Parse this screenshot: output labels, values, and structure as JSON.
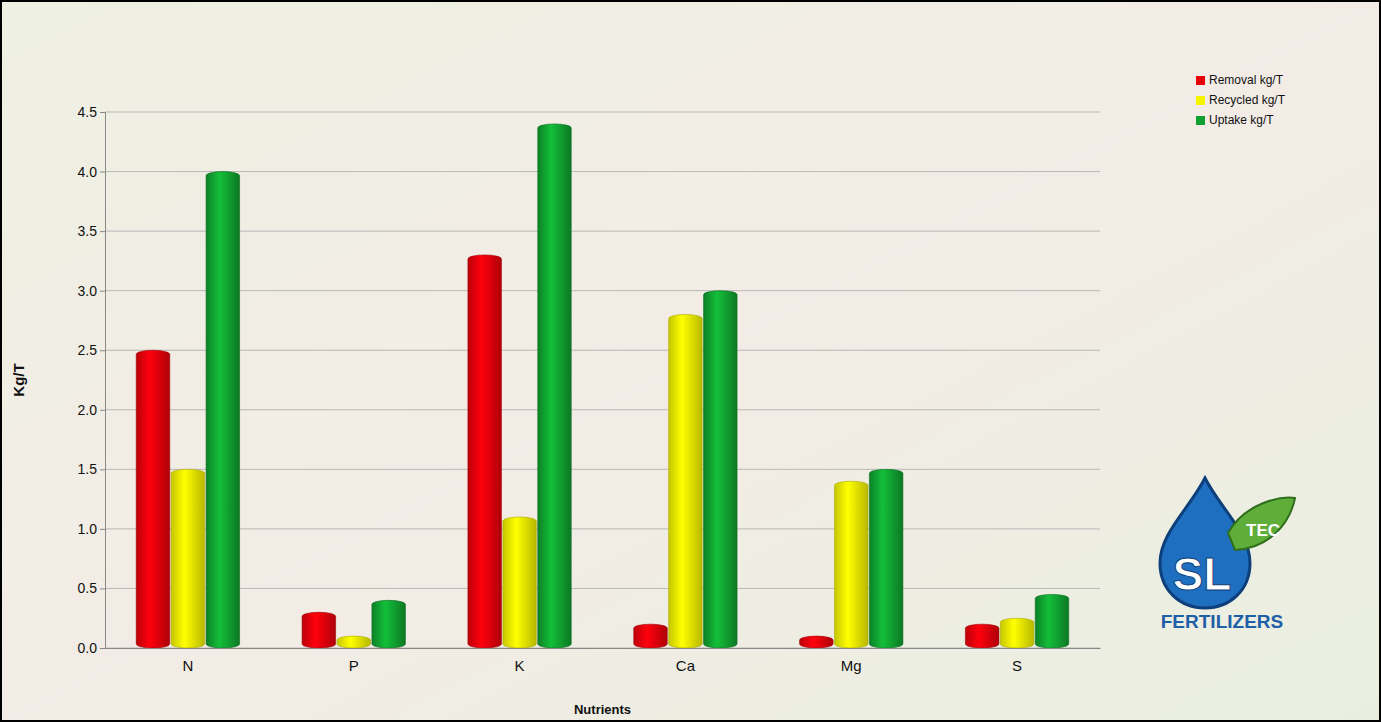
{
  "chart_data": {
    "type": "bar",
    "x_label": "Nutrients",
    "y_label": "Kg/T",
    "categories": [
      "N",
      "P",
      "K",
      "Ca",
      "Mg",
      "S"
    ],
    "series": [
      {
        "name": "Removal kg/T",
        "color": "#e8000b",
        "values": [
          2.5,
          0.3,
          3.3,
          0.2,
          0.1,
          0.2
        ]
      },
      {
        "name": "Recycled kg/T",
        "color": "#f5f500",
        "values": [
          1.5,
          0.1,
          1.1,
          2.8,
          1.4,
          0.25
        ]
      },
      {
        "name": "Uptake kg/T",
        "color": "#10a030",
        "values": [
          4.0,
          0.4,
          4.4,
          3.0,
          1.5,
          0.45
        ]
      }
    ],
    "ylim": [
      0,
      4.5
    ],
    "yticks": [
      {
        "value": 0,
        "label": "0.0"
      },
      0.5,
      {
        "value": 1,
        "label": "1.0"
      },
      1.5,
      {
        "value": 2,
        "label": "2.0"
      },
      2.5,
      {
        "value": 3,
        "label": "3.0"
      },
      3.5,
      {
        "value": 4,
        "label": "4.0"
      },
      4.5
    ],
    "grid": true,
    "legend": "top-right",
    "annotations": [
      "SL",
      "TEC",
      "FERTILIZERS"
    ]
  }
}
